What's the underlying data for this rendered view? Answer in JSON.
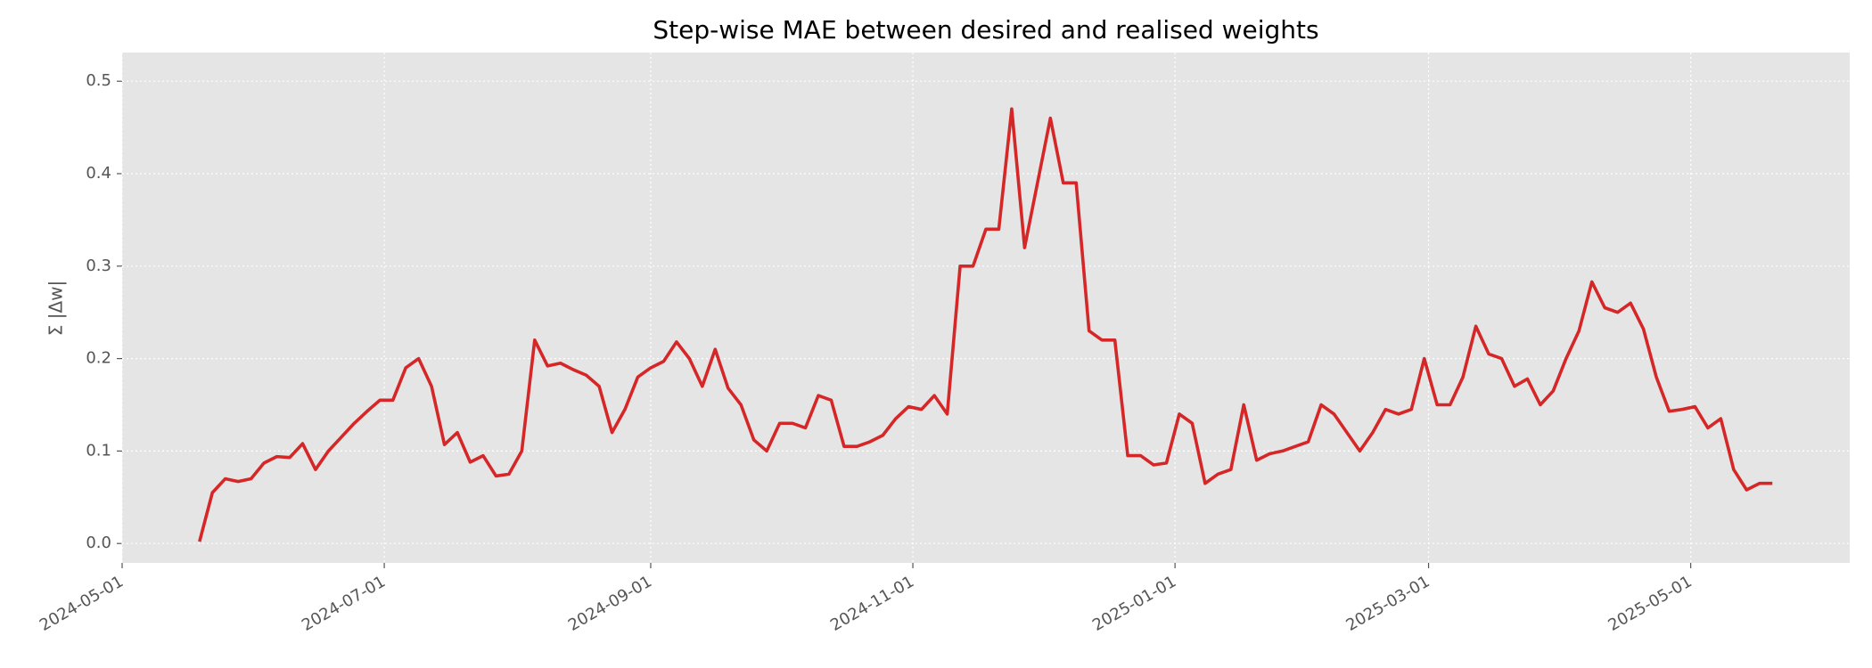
{
  "chart_data": {
    "type": "line",
    "title": "Step-wise MAE between desired and realised weights",
    "y_label": "Σ |Δw|",
    "color": "#d62728",
    "grid": true,
    "xlim": [
      "2024-05-01",
      "2025-06-07"
    ],
    "xticks": [
      "2024-05-01",
      "2024-07-01",
      "2024-09-01",
      "2024-11-01",
      "2025-01-01",
      "2025-03-01",
      "2025-05-01"
    ],
    "ylim": [
      -0.021,
      0.531
    ],
    "yticks": [
      {
        "value": 0,
        "label": "0.0"
      },
      0.1,
      0.2,
      0.3,
      0.4,
      0.5
    ],
    "x": [
      "2024-05-19",
      "2024-05-22",
      "2024-05-25",
      "2024-05-28",
      "2024-05-31",
      "2024-06-03",
      "2024-06-06",
      "2024-06-09",
      "2024-06-12",
      "2024-06-15",
      "2024-06-18",
      "2024-06-21",
      "2024-06-24",
      "2024-06-27",
      "2024-06-30",
      "2024-07-03",
      "2024-07-06",
      "2024-07-09",
      "2024-07-12",
      "2024-07-15",
      "2024-07-18",
      "2024-07-21",
      "2024-07-24",
      "2024-07-27",
      "2024-07-30",
      "2024-08-02",
      "2024-08-05",
      "2024-08-08",
      "2024-08-11",
      "2024-08-14",
      "2024-08-17",
      "2024-08-20",
      "2024-08-23",
      "2024-08-26",
      "2024-08-29",
      "2024-09-01",
      "2024-09-04",
      "2024-09-07",
      "2024-09-10",
      "2024-09-13",
      "2024-09-16",
      "2024-09-19",
      "2024-09-22",
      "2024-09-25",
      "2024-09-28",
      "2024-10-01",
      "2024-10-04",
      "2024-10-07",
      "2024-10-10",
      "2024-10-13",
      "2024-10-16",
      "2024-10-19",
      "2024-10-22",
      "2024-10-25",
      "2024-10-28",
      "2024-10-31",
      "2024-11-03",
      "2024-11-06",
      "2024-11-09",
      "2024-11-12",
      "2024-11-15",
      "2024-11-18",
      "2024-11-21",
      "2024-11-24",
      "2024-11-27",
      "2024-11-30",
      "2024-12-03",
      "2024-12-06",
      "2024-12-09",
      "2024-12-12",
      "2024-12-15",
      "2024-12-18",
      "2024-12-21",
      "2024-12-24",
      "2024-12-27",
      "2024-12-30",
      "2025-01-02",
      "2025-01-05",
      "2025-01-08",
      "2025-01-11",
      "2025-01-14",
      "2025-01-17",
      "2025-01-20",
      "2025-01-23",
      "2025-01-26",
      "2025-01-29",
      "2025-02-01",
      "2025-02-04",
      "2025-02-07",
      "2025-02-10",
      "2025-02-13",
      "2025-02-16",
      "2025-02-19",
      "2025-02-22",
      "2025-02-25",
      "2025-02-28",
      "2025-03-03",
      "2025-03-06",
      "2025-03-09",
      "2025-03-12",
      "2025-03-15",
      "2025-03-18",
      "2025-03-21",
      "2025-03-24",
      "2025-03-27",
      "2025-03-30",
      "2025-04-02",
      "2025-04-05",
      "2025-04-08",
      "2025-04-11",
      "2025-04-14",
      "2025-04-17",
      "2025-04-20",
      "2025-04-23",
      "2025-04-26",
      "2025-04-29",
      "2025-05-02",
      "2025-05-05",
      "2025-05-08",
      "2025-05-11",
      "2025-05-14",
      "2025-05-17",
      "2025-05-20"
    ],
    "values": [
      0.002,
      0.055,
      0.07,
      0.067,
      0.07,
      0.087,
      0.094,
      0.093,
      0.108,
      0.08,
      0.1,
      0.115,
      0.13,
      0.143,
      0.155,
      0.155,
      0.19,
      0.2,
      0.17,
      0.107,
      0.12,
      0.088,
      0.095,
      0.073,
      0.075,
      0.1,
      0.22,
      0.192,
      0.195,
      0.188,
      0.182,
      0.17,
      0.12,
      0.145,
      0.18,
      0.19,
      0.197,
      0.218,
      0.2,
      0.17,
      0.21,
      0.168,
      0.15,
      0.112,
      0.1,
      0.13,
      0.13,
      0.125,
      0.16,
      0.155,
      0.105,
      0.105,
      0.11,
      0.117,
      0.135,
      0.148,
      0.145,
      0.16,
      0.14,
      0.3,
      0.3,
      0.34,
      0.34,
      0.47,
      0.32,
      0.39,
      0.46,
      0.39,
      0.39,
      0.23,
      0.22,
      0.22,
      0.095,
      0.095,
      0.085,
      0.087,
      0.14,
      0.13,
      0.065,
      0.075,
      0.08,
      0.15,
      0.09,
      0.097,
      0.1,
      0.105,
      0.11,
      0.15,
      0.14,
      0.12,
      0.1,
      0.12,
      0.145,
      0.14,
      0.145,
      0.2,
      0.15,
      0.15,
      0.18,
      0.235,
      0.205,
      0.2,
      0.17,
      0.178,
      0.15,
      0.165,
      0.2,
      0.23,
      0.283,
      0.255,
      0.25,
      0.26,
      0.232,
      0.18,
      0.143,
      0.145,
      0.148,
      0.125,
      0.135,
      0.08,
      0.058,
      0.065,
      0.065
    ]
  }
}
